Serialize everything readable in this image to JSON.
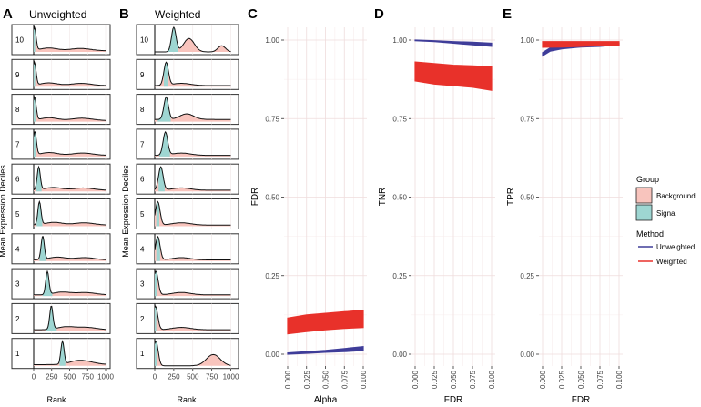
{
  "chart_data": [
    {
      "panel": "A",
      "type": "area",
      "title": "Unweighted",
      "xlabel": "Rank",
      "ylabel": "Mean Expression Deciles",
      "xlim": [
        -50,
        1050
      ],
      "xticks": [
        0,
        250,
        500,
        750,
        1000
      ],
      "xtick_labels": [
        "0",
        "250",
        "500",
        "750",
        "1000"
      ],
      "facets": [
        "10",
        "9",
        "8",
        "7",
        "6",
        "5",
        "4",
        "3",
        "2",
        "1"
      ],
      "signal_range": [
        [
          0,
          20
        ],
        [
          0,
          20
        ],
        [
          0,
          25
        ],
        [
          0,
          30
        ],
        [
          30,
          110
        ],
        [
          40,
          120
        ],
        [
          80,
          170
        ],
        [
          120,
          260
        ],
        [
          170,
          320
        ],
        [
          360,
          440
        ]
      ],
      "signal_peak": [
        10,
        10,
        12,
        15,
        70,
        80,
        125,
        190,
        245,
        400
      ]
    },
    {
      "panel": "B",
      "type": "area",
      "title": "Weighted",
      "xlabel": "Rank",
      "ylabel": "Mean Expression Deciles",
      "xlim": [
        -50,
        1000
      ],
      "xticks": [
        0,
        250,
        500,
        750,
        1000
      ],
      "xtick_labels": [
        "0",
        "250",
        "500",
        "750",
        "1000"
      ],
      "facets": [
        "10",
        "9",
        "8",
        "7",
        "6",
        "5",
        "4",
        "3",
        "2",
        "1"
      ],
      "signal_range": [
        [
          110,
          300
        ],
        [
          120,
          170
        ],
        [
          40,
          210
        ],
        [
          60,
          200
        ],
        [
          50,
          130
        ],
        [
          20,
          60
        ],
        [
          20,
          70
        ],
        [
          0,
          30
        ],
        [
          0,
          20
        ],
        [
          0,
          30
        ]
      ],
      "signal_peak": [
        250,
        150,
        150,
        140,
        80,
        40,
        40,
        15,
        10,
        15
      ]
    },
    {
      "panel": "C",
      "type": "line",
      "xlabel": "Alpha",
      "ylabel": "FDR",
      "xlim": [
        0,
        0.1
      ],
      "ylim": [
        0,
        1
      ],
      "xticks": [
        0,
        0.025,
        0.05,
        0.075,
        0.1
      ],
      "xtick_labels": [
        "0.000",
        "0.025",
        "0.050",
        "0.075",
        "0.100"
      ],
      "yticks": [
        0,
        0.25,
        0.5,
        0.75,
        1
      ],
      "ytick_labels": [
        "0.00",
        "0.25",
        "0.50",
        "0.75",
        "1.00"
      ],
      "series": [
        {
          "name": "Unweighted",
          "x": [
            0,
            0.025,
            0.05,
            0.075,
            0.1
          ],
          "lower": [
            0.0,
            0.003,
            0.006,
            0.008,
            0.012
          ],
          "upper": [
            0.004,
            0.008,
            0.012,
            0.018,
            0.024
          ]
        },
        {
          "name": "Weighted",
          "x": [
            0,
            0.025,
            0.05,
            0.075,
            0.1
          ],
          "lower": [
            0.065,
            0.072,
            0.078,
            0.082,
            0.085
          ],
          "upper": [
            0.115,
            0.125,
            0.13,
            0.135,
            0.14
          ]
        }
      ]
    },
    {
      "panel": "D",
      "type": "line",
      "xlabel": "FDR",
      "ylabel": "TNR",
      "xlim": [
        0,
        0.1
      ],
      "ylim": [
        0,
        1
      ],
      "xticks": [
        0,
        0.025,
        0.05,
        0.075,
        0.1
      ],
      "xtick_labels": [
        "0.000",
        "0.025",
        "0.050",
        "0.075",
        "0.100"
      ],
      "yticks": [
        0,
        0.25,
        0.5,
        0.75,
        1
      ],
      "ytick_labels": [
        "0.00",
        "0.25",
        "0.50",
        "0.75",
        "1.00"
      ],
      "series": [
        {
          "name": "Unweighted",
          "x": [
            0,
            0.025,
            0.05,
            0.075,
            0.1
          ],
          "lower": [
            0.998,
            0.995,
            0.99,
            0.985,
            0.98
          ],
          "upper": [
            1.0,
            0.998,
            0.995,
            0.993,
            0.99
          ]
        },
        {
          "name": "Weighted",
          "x": [
            0,
            0.025,
            0.05,
            0.075,
            0.1
          ],
          "lower": [
            0.87,
            0.86,
            0.855,
            0.85,
            0.84
          ],
          "upper": [
            0.93,
            0.925,
            0.92,
            0.918,
            0.915
          ]
        }
      ]
    },
    {
      "panel": "E",
      "type": "line",
      "xlabel": "FDR",
      "ylabel": "TPR",
      "xlim": [
        0,
        0.1
      ],
      "ylim": [
        0,
        1
      ],
      "xticks": [
        0,
        0.025,
        0.05,
        0.075,
        0.1
      ],
      "xtick_labels": [
        "0.000",
        "0.025",
        "0.050",
        "0.075",
        "0.100"
      ],
      "yticks": [
        0,
        0.25,
        0.5,
        0.75,
        1
      ],
      "ytick_labels": [
        "0.00",
        "0.25",
        "0.50",
        "0.75",
        "1.00"
      ],
      "series": [
        {
          "name": "Unweighted",
          "x": [
            0,
            0.01,
            0.025,
            0.05,
            0.075,
            0.1
          ],
          "lower": [
            0.95,
            0.965,
            0.972,
            0.978,
            0.98,
            0.985
          ],
          "upper": [
            0.96,
            0.975,
            0.978,
            0.982,
            0.985,
            0.99
          ]
        },
        {
          "name": "Weighted",
          "x": [
            0,
            0.025,
            0.05,
            0.075,
            0.1
          ],
          "lower": [
            0.977,
            0.978,
            0.98,
            0.982,
            0.983
          ],
          "upper": [
            0.995,
            0.995,
            0.995,
            0.995,
            0.995
          ]
        }
      ]
    }
  ],
  "legend": {
    "group_title": "Group",
    "group_items": [
      {
        "label": "Background",
        "color": "#f8c4bd"
      },
      {
        "label": "Signal",
        "color": "#9ed6d2"
      }
    ],
    "method_title": "Method",
    "method_items": [
      {
        "label": "Unweighted",
        "color": "#3f3d99"
      },
      {
        "label": "Weighted",
        "color": "#e8312a"
      }
    ]
  },
  "panel_letters": [
    "A",
    "B",
    "C",
    "D",
    "E"
  ]
}
